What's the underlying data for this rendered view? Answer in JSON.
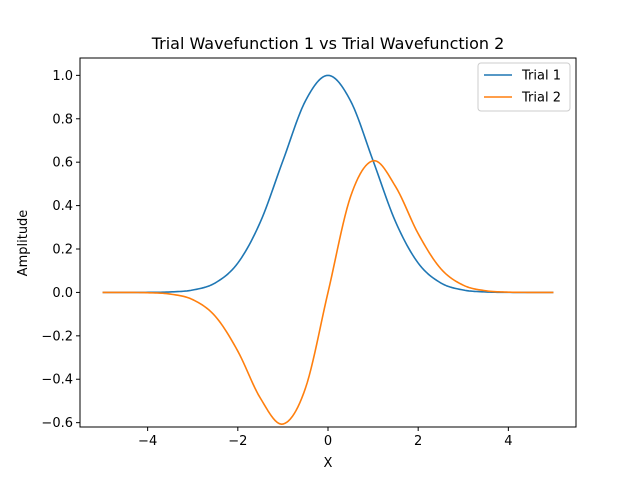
{
  "chart_data": {
    "type": "line",
    "title": "Trial Wavefunction 1 vs Trial Wavefunction 2",
    "xlabel": "X",
    "ylabel": "Amplitude",
    "xlim": [
      -5.5,
      5.5
    ],
    "ylim": [
      -0.62,
      1.08
    ],
    "xticks": [
      -4,
      -2,
      0,
      2,
      4
    ],
    "xtick_labels": [
      "−4",
      "−2",
      "0",
      "2",
      "4"
    ],
    "yticks": [
      -0.6,
      -0.4,
      -0.2,
      0.0,
      0.2,
      0.4,
      0.6,
      0.8,
      1.0
    ],
    "ytick_labels": [
      "−0.6",
      "−0.4",
      "−0.2",
      "0.0",
      "0.2",
      "0.4",
      "0.6",
      "0.8",
      "1.0"
    ],
    "grid": false,
    "legend_position": "top-right",
    "x": [
      -5.0,
      -4.5,
      -4.0,
      -3.5,
      -3.0,
      -2.5,
      -2.0,
      -1.5,
      -1.0,
      -0.5,
      0.0,
      0.5,
      1.0,
      1.5,
      2.0,
      2.5,
      3.0,
      3.5,
      4.0,
      4.5,
      5.0
    ],
    "series": [
      {
        "name": "Trial 1",
        "color": "#1f77b4",
        "values": [
          0.0,
          0.0,
          0.0003,
          0.0022,
          0.0111,
          0.0439,
          0.1353,
          0.3247,
          0.6065,
          0.8825,
          1.0,
          0.8825,
          0.6065,
          0.3247,
          0.1353,
          0.0439,
          0.0111,
          0.0022,
          0.0003,
          0.0,
          0.0
        ]
      },
      {
        "name": "Trial 2",
        "color": "#ff7f0e",
        "values": [
          0.0,
          -0.0001,
          -0.0013,
          -0.0076,
          -0.0333,
          -0.1097,
          -0.2707,
          -0.4871,
          -0.6065,
          -0.4412,
          0.0,
          0.4412,
          0.6065,
          0.4871,
          0.2707,
          0.1097,
          0.0333,
          0.0076,
          0.0013,
          0.0001,
          0.0
        ]
      }
    ]
  }
}
